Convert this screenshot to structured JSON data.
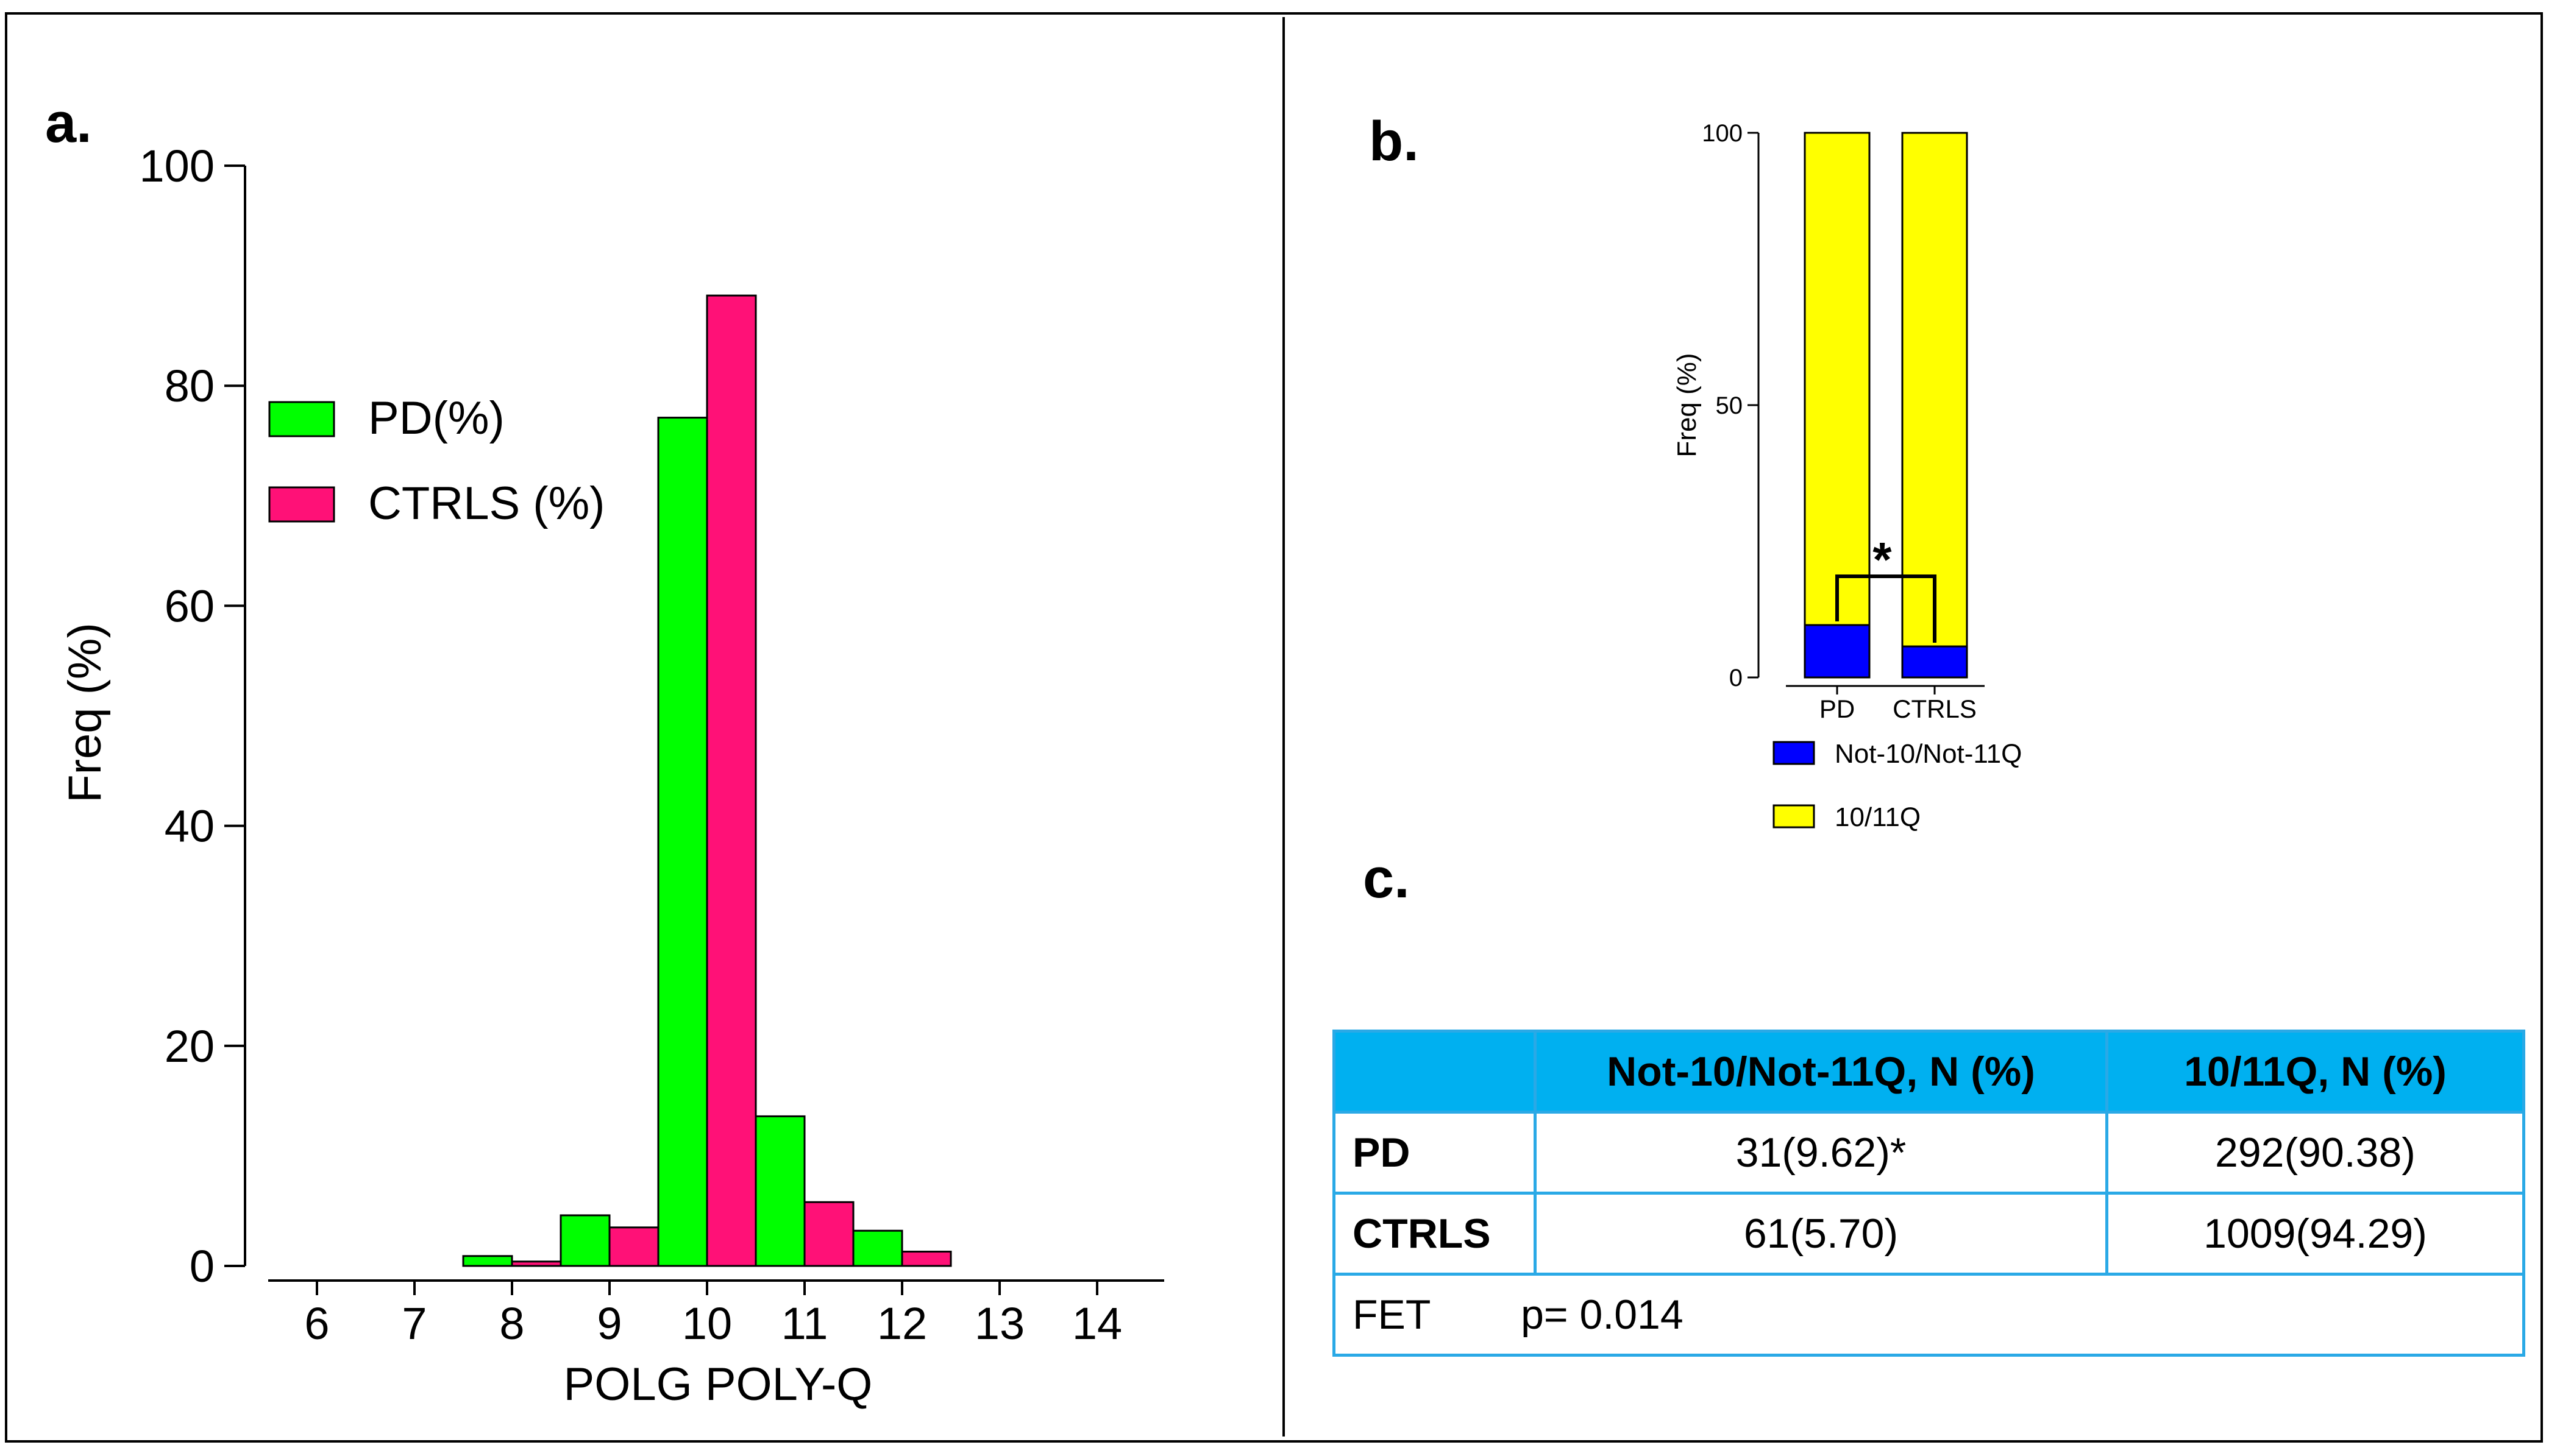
{
  "panel_labels": {
    "a": "a.",
    "b": "b.",
    "c": "c."
  },
  "chart_data": [
    {
      "type": "bar",
      "title": "",
      "xlabel": "POLG POLY-Q",
      "ylabel": "Freq (%)",
      "categories": [
        "6",
        "7",
        "8",
        "9",
        "10",
        "11",
        "12",
        "13",
        "14"
      ],
      "ylim": [
        0,
        100
      ],
      "yticks": [
        0,
        20,
        40,
        60,
        80,
        100
      ],
      "series": [
        {
          "name": "PD(%)",
          "color": "#00ff00",
          "values": [
            0,
            0,
            0.9,
            4.6,
            77.1,
            13.6,
            3.2,
            0,
            0
          ]
        },
        {
          "name": "CTRLS (%)",
          "color": "#ff1177",
          "values": [
            0,
            0,
            0.4,
            3.5,
            88.2,
            5.8,
            1.3,
            0,
            0
          ]
        }
      ],
      "legend": "upper-left"
    },
    {
      "type": "bar",
      "stacked": true,
      "title": "",
      "xlabel": "",
      "ylabel": "Freq (%)",
      "categories": [
        "PD",
        "CTRLS"
      ],
      "ylim": [
        0,
        100
      ],
      "yticks": [
        0,
        50,
        100
      ],
      "series": [
        {
          "name": "Not-10/Not-11Q",
          "color": "#0000ff",
          "values": [
            9.62,
            5.7
          ]
        },
        {
          "name": "10/11Q",
          "color": "#ffff00",
          "values": [
            90.38,
            94.29
          ]
        }
      ],
      "annotation": "*",
      "legend": "bottom"
    }
  ],
  "table_c": {
    "headers": [
      "",
      "Not-10/Not-11Q, N (%)",
      "10/11Q, N (%)"
    ],
    "rows": [
      [
        "PD",
        "31(9.62)*",
        "292(90.38)"
      ],
      [
        "CTRLS",
        "61(5.70)",
        "1009(94.29)"
      ]
    ],
    "footer": {
      "label": "FET",
      "value": "p= 0.014"
    }
  }
}
